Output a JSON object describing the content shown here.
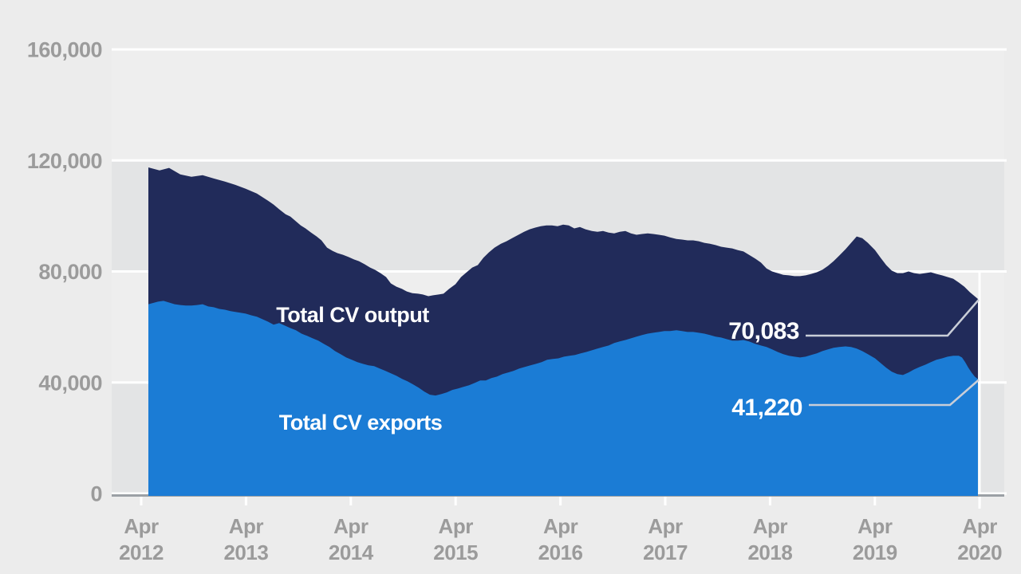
{
  "colors": {
    "page_bg": "#ececec",
    "band_light": "#eeeeee",
    "band_dark": "#e3e4e5",
    "gridline": "#ffffff",
    "axis_line": "#9ba0a5",
    "tick_label": "#9b9b9b",
    "output_fill": "#212b5a",
    "exports_fill": "#1b7cd5",
    "leader_line": "#c9ced8",
    "annotation_text": "#ffffff",
    "series_label_text": "#ffffff"
  },
  "chart_data": {
    "type": "area",
    "title": "",
    "xlabel": "",
    "ylabel": "",
    "ylim": [
      0,
      160000
    ],
    "grid": "horizontal-white-on-gray-bands",
    "legend_position": "labels-inside-areas",
    "y_ticks": [
      {
        "label": "160,000",
        "value": 160000
      },
      {
        "label": "120,000",
        "value": 120000
      },
      {
        "label": "80,000",
        "value": 80000
      },
      {
        "label": "40,000",
        "value": 40000
      },
      {
        "label": "0",
        "value": 0
      }
    ],
    "x_ticks": [
      {
        "line1": "Apr",
        "line2": "2012"
      },
      {
        "line1": "Apr",
        "line2": "2013"
      },
      {
        "line1": "Apr",
        "line2": "2014"
      },
      {
        "line1": "Apr",
        "line2": "2015"
      },
      {
        "line1": "Apr",
        "line2": "2016"
      },
      {
        "line1": "Apr",
        "line2": "2017"
      },
      {
        "line1": "Apr",
        "line2": "2018"
      },
      {
        "line1": "Apr",
        "line2": "2019"
      },
      {
        "line1": "Apr",
        "line2": "2020"
      }
    ],
    "series": [
      {
        "name": "Total CV output",
        "label_text": "Total CV output",
        "final_value": 70083,
        "points": [
          [
            186,
            117500
          ],
          [
            200,
            116400
          ],
          [
            212,
            117300
          ],
          [
            226,
            115000
          ],
          [
            240,
            114100
          ],
          [
            254,
            114700
          ],
          [
            268,
            113500
          ],
          [
            282,
            112400
          ],
          [
            295,
            111200
          ],
          [
            308,
            109800
          ],
          [
            322,
            108100
          ],
          [
            336,
            105500
          ],
          [
            343,
            104100
          ],
          [
            350,
            102400
          ],
          [
            358,
            100600
          ],
          [
            364,
            99800
          ],
          [
            370,
            98300
          ],
          [
            377,
            96600
          ],
          [
            383,
            95500
          ],
          [
            390,
            94000
          ],
          [
            397,
            92600
          ],
          [
            403,
            91200
          ],
          [
            410,
            88600
          ],
          [
            417,
            87400
          ],
          [
            423,
            86600
          ],
          [
            430,
            86000
          ],
          [
            437,
            85200
          ],
          [
            444,
            84300
          ],
          [
            450,
            83700
          ],
          [
            457,
            82600
          ],
          [
            464,
            81400
          ],
          [
            470,
            80600
          ],
          [
            477,
            79400
          ],
          [
            484,
            78000
          ],
          [
            490,
            75700
          ],
          [
            497,
            74500
          ],
          [
            504,
            73700
          ],
          [
            510,
            72800
          ],
          [
            517,
            72200
          ],
          [
            524,
            72000
          ],
          [
            530,
            71700
          ],
          [
            537,
            71100
          ],
          [
            543,
            71400
          ],
          [
            550,
            71700
          ],
          [
            556,
            72000
          ],
          [
            563,
            73700
          ],
          [
            571,
            75400
          ],
          [
            578,
            78000
          ],
          [
            585,
            79700
          ],
          [
            592,
            81400
          ],
          [
            599,
            82300
          ],
          [
            606,
            84900
          ],
          [
            613,
            86900
          ],
          [
            620,
            88600
          ],
          [
            628,
            90000
          ],
          [
            635,
            90900
          ],
          [
            642,
            92000
          ],
          [
            650,
            93200
          ],
          [
            657,
            94300
          ],
          [
            664,
            95200
          ],
          [
            671,
            95800
          ],
          [
            678,
            96300
          ],
          [
            685,
            96600
          ],
          [
            692,
            96600
          ],
          [
            699,
            96300
          ],
          [
            706,
            96900
          ],
          [
            713,
            96600
          ],
          [
            720,
            95500
          ],
          [
            727,
            96000
          ],
          [
            734,
            95200
          ],
          [
            742,
            94600
          ],
          [
            749,
            94300
          ],
          [
            756,
            94600
          ],
          [
            763,
            94000
          ],
          [
            770,
            93700
          ],
          [
            777,
            94300
          ],
          [
            784,
            94600
          ],
          [
            791,
            93700
          ],
          [
            798,
            93200
          ],
          [
            805,
            93500
          ],
          [
            812,
            93700
          ],
          [
            819,
            93500
          ],
          [
            826,
            93200
          ],
          [
            833,
            92900
          ],
          [
            840,
            92300
          ],
          [
            848,
            91700
          ],
          [
            855,
            91500
          ],
          [
            862,
            91200
          ],
          [
            869,
            91200
          ],
          [
            876,
            90900
          ],
          [
            883,
            90300
          ],
          [
            890,
            90000
          ],
          [
            897,
            89500
          ],
          [
            904,
            88900
          ],
          [
            911,
            88600
          ],
          [
            918,
            88300
          ],
          [
            925,
            87700
          ],
          [
            932,
            87200
          ],
          [
            939,
            86000
          ],
          [
            947,
            84600
          ],
          [
            954,
            83200
          ],
          [
            961,
            81100
          ],
          [
            968,
            80000
          ],
          [
            975,
            79400
          ],
          [
            982,
            78800
          ],
          [
            989,
            78600
          ],
          [
            996,
            78300
          ],
          [
            1003,
            78300
          ],
          [
            1010,
            78600
          ],
          [
            1017,
            79100
          ],
          [
            1024,
            79700
          ],
          [
            1031,
            80600
          ],
          [
            1038,
            82000
          ],
          [
            1045,
            83700
          ],
          [
            1052,
            85700
          ],
          [
            1060,
            88000
          ],
          [
            1067,
            90300
          ],
          [
            1074,
            92600
          ],
          [
            1081,
            92000
          ],
          [
            1088,
            90300
          ],
          [
            1097,
            87700
          ],
          [
            1104,
            84900
          ],
          [
            1111,
            82300
          ],
          [
            1118,
            80300
          ],
          [
            1125,
            79400
          ],
          [
            1132,
            79400
          ],
          [
            1139,
            80000
          ],
          [
            1146,
            79400
          ],
          [
            1153,
            79100
          ],
          [
            1160,
            79400
          ],
          [
            1167,
            79700
          ],
          [
            1174,
            79100
          ],
          [
            1181,
            78600
          ],
          [
            1188,
            78000
          ],
          [
            1195,
            77400
          ],
          [
            1202,
            76000
          ],
          [
            1209,
            74500
          ],
          [
            1216,
            72500
          ],
          [
            1226,
            70083
          ]
        ]
      },
      {
        "name": "Total CV exports",
        "label_text": "Total CV exports",
        "final_value": 41220,
        "points": [
          [
            186,
            68200
          ],
          [
            198,
            69100
          ],
          [
            205,
            69400
          ],
          [
            212,
            68800
          ],
          [
            219,
            68200
          ],
          [
            226,
            67900
          ],
          [
            233,
            67700
          ],
          [
            240,
            67700
          ],
          [
            247,
            67900
          ],
          [
            254,
            68200
          ],
          [
            261,
            67400
          ],
          [
            268,
            67100
          ],
          [
            275,
            66500
          ],
          [
            282,
            66200
          ],
          [
            289,
            65700
          ],
          [
            295,
            65400
          ],
          [
            302,
            65100
          ],
          [
            308,
            64800
          ],
          [
            315,
            64200
          ],
          [
            322,
            63700
          ],
          [
            329,
            62800
          ],
          [
            336,
            61900
          ],
          [
            343,
            60800
          ],
          [
            350,
            61400
          ],
          [
            357,
            60500
          ],
          [
            364,
            59600
          ],
          [
            371,
            58800
          ],
          [
            378,
            57600
          ],
          [
            385,
            56800
          ],
          [
            392,
            55900
          ],
          [
            399,
            55100
          ],
          [
            406,
            53900
          ],
          [
            413,
            52800
          ],
          [
            420,
            51300
          ],
          [
            427,
            50200
          ],
          [
            434,
            49000
          ],
          [
            441,
            48200
          ],
          [
            448,
            47300
          ],
          [
            455,
            46700
          ],
          [
            462,
            46200
          ],
          [
            469,
            45900
          ],
          [
            476,
            45000
          ],
          [
            483,
            44200
          ],
          [
            490,
            43300
          ],
          [
            497,
            42400
          ],
          [
            504,
            41300
          ],
          [
            511,
            40400
          ],
          [
            518,
            39300
          ],
          [
            525,
            38100
          ],
          [
            532,
            36700
          ],
          [
            539,
            35600
          ],
          [
            546,
            35300
          ],
          [
            553,
            35800
          ],
          [
            560,
            36400
          ],
          [
            567,
            37300
          ],
          [
            574,
            37800
          ],
          [
            581,
            38400
          ],
          [
            588,
            39000
          ],
          [
            595,
            39800
          ],
          [
            602,
            40700
          ],
          [
            609,
            40700
          ],
          [
            616,
            41600
          ],
          [
            623,
            42100
          ],
          [
            630,
            43000
          ],
          [
            637,
            43600
          ],
          [
            644,
            44200
          ],
          [
            651,
            45000
          ],
          [
            658,
            45600
          ],
          [
            665,
            46200
          ],
          [
            672,
            46700
          ],
          [
            679,
            47300
          ],
          [
            686,
            48200
          ],
          [
            693,
            48500
          ],
          [
            700,
            48700
          ],
          [
            707,
            49300
          ],
          [
            714,
            49600
          ],
          [
            721,
            49900
          ],
          [
            728,
            50500
          ],
          [
            735,
            51000
          ],
          [
            742,
            51600
          ],
          [
            749,
            52200
          ],
          [
            756,
            52800
          ],
          [
            763,
            53300
          ],
          [
            770,
            54200
          ],
          [
            777,
            54800
          ],
          [
            784,
            55300
          ],
          [
            791,
            55900
          ],
          [
            798,
            56500
          ],
          [
            805,
            57100
          ],
          [
            812,
            57600
          ],
          [
            819,
            57900
          ],
          [
            826,
            58200
          ],
          [
            833,
            58500
          ],
          [
            840,
            58500
          ],
          [
            848,
            58800
          ],
          [
            855,
            58500
          ],
          [
            862,
            58200
          ],
          [
            869,
            58200
          ],
          [
            876,
            57900
          ],
          [
            883,
            57600
          ],
          [
            890,
            57100
          ],
          [
            897,
            56500
          ],
          [
            904,
            56200
          ],
          [
            911,
            55600
          ],
          [
            918,
            55100
          ],
          [
            925,
            55100
          ],
          [
            932,
            55300
          ],
          [
            939,
            54800
          ],
          [
            947,
            53900
          ],
          [
            954,
            53300
          ],
          [
            961,
            52800
          ],
          [
            968,
            51900
          ],
          [
            975,
            51000
          ],
          [
            982,
            50200
          ],
          [
            989,
            49600
          ],
          [
            996,
            49300
          ],
          [
            1003,
            49000
          ],
          [
            1010,
            49300
          ],
          [
            1017,
            49900
          ],
          [
            1024,
            50500
          ],
          [
            1031,
            51300
          ],
          [
            1038,
            51900
          ],
          [
            1045,
            52500
          ],
          [
            1052,
            52800
          ],
          [
            1060,
            53000
          ],
          [
            1067,
            52800
          ],
          [
            1074,
            52200
          ],
          [
            1081,
            51300
          ],
          [
            1088,
            50200
          ],
          [
            1097,
            48700
          ],
          [
            1104,
            47000
          ],
          [
            1111,
            45300
          ],
          [
            1118,
            43900
          ],
          [
            1125,
            43000
          ],
          [
            1132,
            42700
          ],
          [
            1139,
            43600
          ],
          [
            1146,
            44700
          ],
          [
            1153,
            45600
          ],
          [
            1160,
            46400
          ],
          [
            1167,
            47300
          ],
          [
            1174,
            48200
          ],
          [
            1181,
            48700
          ],
          [
            1188,
            49300
          ],
          [
            1195,
            49600
          ],
          [
            1202,
            49600
          ],
          [
            1206,
            49000
          ],
          [
            1210,
            47300
          ],
          [
            1214,
            45300
          ],
          [
            1218,
            43600
          ],
          [
            1222,
            42100
          ],
          [
            1226,
            41220
          ]
        ]
      }
    ],
    "annotations": [
      {
        "text": "70,083",
        "value": 70083,
        "series": "Total CV output"
      },
      {
        "text": "41,220",
        "value": 41220,
        "series": "Total CV exports"
      }
    ]
  }
}
